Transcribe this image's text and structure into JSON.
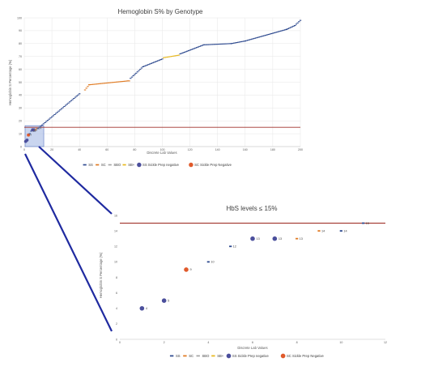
{
  "colors": {
    "SS": "#2e4a8f",
    "SC": "#e07a22",
    "SBO": "#a5a5a5",
    "SB+": "#e8b81e",
    "SS Sickle Prep negative": "#4b4f9c",
    "SC Sickle Prep Negative": "#e05a2b",
    "threshold": "#a0322a",
    "zoom": "#1f2aa0"
  },
  "chart_data": [
    {
      "type": "scatter",
      "title": "Hemoglobin S% by Genotype",
      "xlabel": "Discrete Lab Values",
      "ylabel": "Hemoglobin S Percentage (%)",
      "xlim": [
        0,
        200
      ],
      "ylim": [
        0,
        100
      ],
      "xticks": [
        "0",
        "20",
        "40",
        "60",
        "80",
        "100",
        "120",
        "140",
        "160",
        "180",
        "200"
      ],
      "yticks": [
        "0",
        "10",
        "20",
        "30",
        "40",
        "50",
        "60",
        "70",
        "80",
        "90",
        "100"
      ],
      "threshold": 15,
      "legend": [
        "SS",
        "SC",
        "SBO",
        "SB+",
        "SS Sickle Prep negative",
        "SC Sickle Prep Negative"
      ],
      "legend_position": "bottom",
      "zoom_box": {
        "x": [
          0,
          10
        ],
        "y": [
          0,
          15
        ]
      },
      "segments": [
        {
          "series": "SS",
          "points": [
            [
              11,
              15
            ],
            [
              40,
              41
            ]
          ]
        },
        {
          "series": "SC",
          "points": [
            [
              44,
              44
            ],
            [
              47,
              48
            ],
            [
              75,
              51
            ],
            [
              76,
              51
            ]
          ]
        },
        {
          "series": "SS",
          "points": [
            [
              77,
              53
            ],
            [
              80,
              56
            ],
            [
              86,
              62
            ],
            [
              100,
              68
            ]
          ]
        },
        {
          "series": "SB+",
          "points": [
            [
              101,
              69
            ],
            [
              112,
              71
            ]
          ]
        },
        {
          "series": "SS",
          "points": [
            [
              113,
              72
            ],
            [
              130,
              79
            ],
            [
              150,
              80
            ],
            [
              160,
              82
            ],
            [
              190,
              91
            ],
            [
              196,
              94
            ],
            [
              200,
              98
            ]
          ]
        }
      ],
      "low_points": [
        {
          "x": 1,
          "y": 4,
          "series": "SS Sickle Prep negative"
        },
        {
          "x": 2,
          "y": 5,
          "series": "SS Sickle Prep negative"
        },
        {
          "x": 3,
          "y": 9,
          "series": "SC Sickle Prep Negative"
        },
        {
          "x": 4,
          "y": 10,
          "series": "SS"
        },
        {
          "x": 5,
          "y": 12,
          "series": "SS"
        },
        {
          "x": 6,
          "y": 13,
          "series": "SS Sickle Prep negative"
        },
        {
          "x": 7,
          "y": 13,
          "series": "SS Sickle Prep negative"
        },
        {
          "x": 8,
          "y": 13,
          "series": "SC"
        },
        {
          "x": 9,
          "y": 14,
          "series": "SC"
        },
        {
          "x": 10,
          "y": 14,
          "series": "SS"
        }
      ],
      "labels_shown": [
        {
          "x": 3,
          "y": 9,
          "text": "9"
        },
        {
          "x": 6,
          "y": 13,
          "text": "13"
        },
        {
          "x": 5,
          "y": 12,
          "text": "12"
        },
        {
          "x": 9,
          "y": 14,
          "text": "14"
        }
      ]
    },
    {
      "type": "scatter",
      "title": "HbS levels ≤ 15%",
      "xlabel": "Discrete Lab Values",
      "ylabel": "Hemoglobin S Percentage (%)",
      "xlim": [
        0,
        12
      ],
      "ylim": [
        0,
        16
      ],
      "xticks": [
        "0",
        "2",
        "4",
        "6",
        "8",
        "10",
        "12"
      ],
      "yticks": [
        "0",
        "2",
        "4",
        "6",
        "8",
        "10",
        "12",
        "14",
        "16"
      ],
      "threshold": 15,
      "legend": [
        "SS",
        "SC",
        "SBO",
        "SB+",
        "SS Sickle Prep negative",
        "SC Sickle Prep Negative"
      ],
      "legend_position": "bottom",
      "points": [
        {
          "x": 1,
          "y": 4,
          "series": "SS Sickle Prep negative",
          "label": "4"
        },
        {
          "x": 2,
          "y": 5,
          "series": "SS Sickle Prep negative",
          "label": "5"
        },
        {
          "x": 3,
          "y": 9,
          "series": "SC Sickle Prep Negative",
          "label": "9"
        },
        {
          "x": 4,
          "y": 10,
          "series": "SS",
          "label": "10"
        },
        {
          "x": 5,
          "y": 12,
          "series": "SS",
          "label": "12"
        },
        {
          "x": 6,
          "y": 13,
          "series": "SS Sickle Prep negative",
          "label": "13"
        },
        {
          "x": 7,
          "y": 13,
          "series": "SS Sickle Prep negative",
          "label": "13"
        },
        {
          "x": 8,
          "y": 13,
          "series": "SC",
          "label": "13"
        },
        {
          "x": 9,
          "y": 14,
          "series": "SC",
          "label": "14"
        },
        {
          "x": 10,
          "y": 14,
          "series": "SS",
          "label": "14"
        },
        {
          "x": 11,
          "y": 15,
          "series": "SS",
          "label": "15"
        }
      ]
    }
  ]
}
